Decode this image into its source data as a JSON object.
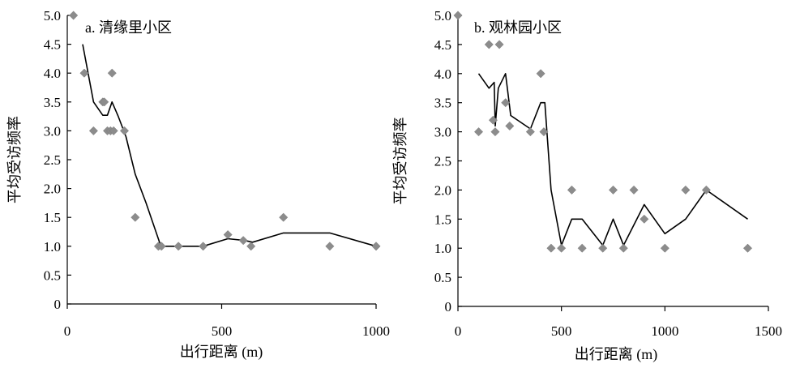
{
  "chart_data": [
    {
      "type": "scatter",
      "title": "a. 清缘里小区",
      "xlabel": "出行距离 (m)",
      "ylabel": "平均受访频率",
      "xlim": [
        0,
        1000
      ],
      "ylim": [
        0,
        5.0
      ],
      "xticks": [
        0,
        500,
        1000
      ],
      "xtick_labels": [
        "0",
        "500",
        "1000"
      ],
      "yticks": [
        0,
        0.5,
        1.0,
        1.5,
        2.0,
        2.5,
        3.0,
        3.5,
        4.0,
        4.5,
        5.0
      ],
      "ytick_labels": [
        "0",
        "0.5",
        "1.0",
        "1.5",
        "2.0",
        "2.5",
        "3.0",
        "3.5",
        "4.0",
        "4.5",
        "5.0"
      ],
      "points": [
        {
          "x": 20,
          "y": 5.0
        },
        {
          "x": 55,
          "y": 4.0
        },
        {
          "x": 85,
          "y": 3.0
        },
        {
          "x": 115,
          "y": 3.5
        },
        {
          "x": 120,
          "y": 3.5
        },
        {
          "x": 130,
          "y": 3.0
        },
        {
          "x": 140,
          "y": 3.0
        },
        {
          "x": 145,
          "y": 4.0
        },
        {
          "x": 150,
          "y": 3.0
        },
        {
          "x": 185,
          "y": 3.0
        },
        {
          "x": 220,
          "y": 1.5
        },
        {
          "x": 295,
          "y": 1.0
        },
        {
          "x": 305,
          "y": 1.0
        },
        {
          "x": 360,
          "y": 1.0
        },
        {
          "x": 440,
          "y": 1.0
        },
        {
          "x": 520,
          "y": 1.2
        },
        {
          "x": 570,
          "y": 1.1
        },
        {
          "x": 595,
          "y": 1.0
        },
        {
          "x": 700,
          "y": 1.5
        },
        {
          "x": 850,
          "y": 1.0
        },
        {
          "x": 1000,
          "y": 1.0
        }
      ],
      "line": [
        {
          "x": 50,
          "y": 4.5
        },
        {
          "x": 85,
          "y": 3.5
        },
        {
          "x": 115,
          "y": 3.27
        },
        {
          "x": 130,
          "y": 3.27
        },
        {
          "x": 145,
          "y": 3.5
        },
        {
          "x": 165,
          "y": 3.25
        },
        {
          "x": 190,
          "y": 2.9
        },
        {
          "x": 220,
          "y": 2.25
        },
        {
          "x": 255,
          "y": 1.75
        },
        {
          "x": 300,
          "y": 1.05
        },
        {
          "x": 310,
          "y": 1.0
        },
        {
          "x": 440,
          "y": 1.0
        },
        {
          "x": 520,
          "y": 1.13
        },
        {
          "x": 575,
          "y": 1.1
        },
        {
          "x": 600,
          "y": 1.07
        },
        {
          "x": 700,
          "y": 1.23
        },
        {
          "x": 850,
          "y": 1.23
        },
        {
          "x": 1000,
          "y": 1.0
        }
      ]
    },
    {
      "type": "scatter",
      "title": "b. 观林园小区",
      "xlabel": "出行距离 (m)",
      "ylabel": "平均受访频率",
      "xlim": [
        0,
        1500
      ],
      "ylim": [
        0,
        5.0
      ],
      "xticks": [
        0,
        500,
        1000,
        1500
      ],
      "xtick_labels": [
        "0",
        "500",
        "1000",
        "1500"
      ],
      "yticks": [
        0,
        0.5,
        1.0,
        1.5,
        2.0,
        2.5,
        3.0,
        3.5,
        4.0,
        4.5,
        5.0
      ],
      "ytick_labels": [
        "0",
        "0.5",
        "1.0",
        "1.5",
        "2.0",
        "2.5",
        "3.0",
        "3.5",
        "4.0",
        "4.5",
        "5.0"
      ],
      "points": [
        {
          "x": 0,
          "y": 5.0
        },
        {
          "x": 100,
          "y": 3.0
        },
        {
          "x": 150,
          "y": 4.5
        },
        {
          "x": 170,
          "y": 3.2
        },
        {
          "x": 180,
          "y": 3.0
        },
        {
          "x": 200,
          "y": 4.5
        },
        {
          "x": 230,
          "y": 3.5
        },
        {
          "x": 250,
          "y": 3.1
        },
        {
          "x": 350,
          "y": 3.0
        },
        {
          "x": 400,
          "y": 4.0
        },
        {
          "x": 415,
          "y": 3.0
        },
        {
          "x": 450,
          "y": 1.0
        },
        {
          "x": 500,
          "y": 1.0
        },
        {
          "x": 550,
          "y": 2.0
        },
        {
          "x": 600,
          "y": 1.0
        },
        {
          "x": 700,
          "y": 1.0
        },
        {
          "x": 750,
          "y": 2.0
        },
        {
          "x": 800,
          "y": 1.0
        },
        {
          "x": 850,
          "y": 2.0
        },
        {
          "x": 900,
          "y": 1.5
        },
        {
          "x": 1000,
          "y": 1.0
        },
        {
          "x": 1100,
          "y": 2.0
        },
        {
          "x": 1200,
          "y": 2.0
        },
        {
          "x": 1400,
          "y": 1.0
        }
      ],
      "line": [
        {
          "x": 100,
          "y": 4.0
        },
        {
          "x": 150,
          "y": 3.75
        },
        {
          "x": 175,
          "y": 3.85
        },
        {
          "x": 180,
          "y": 3.1
        },
        {
          "x": 195,
          "y": 3.75
        },
        {
          "x": 230,
          "y": 4.0
        },
        {
          "x": 255,
          "y": 3.28
        },
        {
          "x": 350,
          "y": 3.05
        },
        {
          "x": 400,
          "y": 3.5
        },
        {
          "x": 420,
          "y": 3.5
        },
        {
          "x": 450,
          "y": 2.0
        },
        {
          "x": 500,
          "y": 1.05
        },
        {
          "x": 550,
          "y": 1.5
        },
        {
          "x": 600,
          "y": 1.5
        },
        {
          "x": 700,
          "y": 1.05
        },
        {
          "x": 750,
          "y": 1.5
        },
        {
          "x": 800,
          "y": 1.05
        },
        {
          "x": 900,
          "y": 1.75
        },
        {
          "x": 1000,
          "y": 1.25
        },
        {
          "x": 1100,
          "y": 1.5
        },
        {
          "x": 1200,
          "y": 2.0
        },
        {
          "x": 1400,
          "y": 1.5
        }
      ]
    }
  ],
  "colors": {
    "marker": "#8c8c8c",
    "line": "#000000",
    "axis": "#000000"
  }
}
